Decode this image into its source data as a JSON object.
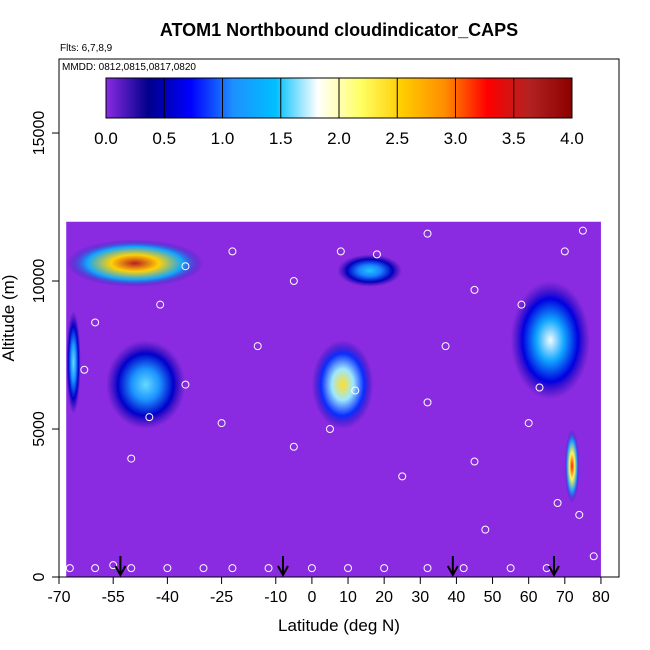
{
  "chart_data": {
    "type": "heatmap",
    "title": "ATOM1 Northbound cloudindicator_CAPS",
    "flights_note": "Flts: 6,7,8,9",
    "dates_note": "MMDD: 0812,0815,0817,0820",
    "xlabel": "Latitude (deg N)",
    "ylabel": "Altitude (m)",
    "xlim": [
      -70,
      85
    ],
    "ylim": [
      0,
      17500
    ],
    "x_ticks": [
      -70,
      -55,
      -40,
      -25,
      -10,
      0,
      10,
      20,
      30,
      40,
      50,
      60,
      70,
      80
    ],
    "y_ticks": [
      0,
      5000,
      10000,
      15000
    ],
    "colorbar": {
      "min": 0,
      "max": 4,
      "ticks": [
        "0.0",
        "0.5",
        "1.0",
        "1.5",
        "2.0",
        "2.5",
        "3.0",
        "3.5",
        "4.0"
      ],
      "colors": [
        "#8a2be2",
        "#00008b",
        "#0000ff",
        "#1e90ff",
        "#00bfff",
        "#ffffff",
        "#ffff66",
        "#ffcc00",
        "#ff8c00",
        "#ff0000",
        "#b22222",
        "#8b0000"
      ]
    },
    "background_value": 0.0,
    "domain_outline": [
      [
        -68,
        0
      ],
      [
        80,
        0
      ],
      [
        80,
        12000
      ],
      [
        -68,
        12000
      ]
    ],
    "cloud_features": [
      {
        "name": "southern-high-cloud",
        "x_range": [
          -68,
          -30
        ],
        "alt_range": [
          9800,
          11400
        ],
        "peak_value": 3.6
      },
      {
        "name": "southern-mid-cloud-a",
        "x_range": [
          -57,
          -35
        ],
        "alt_range": [
          5000,
          8000
        ],
        "peak_value": 1.6
      },
      {
        "name": "southern-edge-column",
        "x_range": [
          -68,
          -64
        ],
        "alt_range": [
          5500,
          9000
        ],
        "peak_value": 1.6
      },
      {
        "name": "tropical-mid-cloud",
        "x_range": [
          0,
          17
        ],
        "alt_range": [
          5000,
          8000
        ],
        "peak_value": 2.4
      },
      {
        "name": "tropical-high-cloud",
        "x_range": [
          7,
          25
        ],
        "alt_range": [
          9800,
          10900
        ],
        "peak_value": 1.5
      },
      {
        "name": "northern-high-band",
        "x_range": [
          55,
          77
        ],
        "alt_range": [
          6000,
          10000
        ],
        "peak_value": 1.8
      },
      {
        "name": "arctic-low-column",
        "x_range": [
          70,
          74
        ],
        "alt_range": [
          2500,
          5000
        ],
        "peak_value": 3.2
      }
    ],
    "sample_points": [
      {
        "lat": -67,
        "alt": 300
      },
      {
        "lat": -60,
        "alt": 300
      },
      {
        "lat": -55,
        "alt": 400
      },
      {
        "lat": -50,
        "alt": 300
      },
      {
        "lat": -40,
        "alt": 300
      },
      {
        "lat": -30,
        "alt": 300
      },
      {
        "lat": -22,
        "alt": 300
      },
      {
        "lat": -12,
        "alt": 300
      },
      {
        "lat": 0,
        "alt": 300
      },
      {
        "lat": 10,
        "alt": 300
      },
      {
        "lat": 20,
        "alt": 300
      },
      {
        "lat": 32,
        "alt": 300
      },
      {
        "lat": 42,
        "alt": 300
      },
      {
        "lat": 55,
        "alt": 300
      },
      {
        "lat": 65,
        "alt": 300
      },
      {
        "lat": 78,
        "alt": 700
      },
      {
        "lat": -50,
        "alt": 4000
      },
      {
        "lat": -45,
        "alt": 5400
      },
      {
        "lat": -35,
        "alt": 6500
      },
      {
        "lat": -25,
        "alt": 5200
      },
      {
        "lat": -15,
        "alt": 7800
      },
      {
        "lat": -5,
        "alt": 4400
      },
      {
        "lat": 5,
        "alt": 5000
      },
      {
        "lat": 12,
        "alt": 6300
      },
      {
        "lat": 25,
        "alt": 3400
      },
      {
        "lat": 32,
        "alt": 5900
      },
      {
        "lat": 45,
        "alt": 3900
      },
      {
        "lat": 48,
        "alt": 1600
      },
      {
        "lat": 60,
        "alt": 5200
      },
      {
        "lat": 68,
        "alt": 2500
      },
      {
        "lat": 74,
        "alt": 2100
      },
      {
        "lat": -60,
        "alt": 8600
      },
      {
        "lat": -42,
        "alt": 9200
      },
      {
        "lat": -35,
        "alt": 10500
      },
      {
        "lat": -22,
        "alt": 11000
      },
      {
        "lat": -5,
        "alt": 10000
      },
      {
        "lat": 8,
        "alt": 11000
      },
      {
        "lat": 18,
        "alt": 10900
      },
      {
        "lat": 32,
        "alt": 11600
      },
      {
        "lat": 45,
        "alt": 9700
      },
      {
        "lat": 58,
        "alt": 9200
      },
      {
        "lat": 70,
        "alt": 11000
      },
      {
        "lat": 75,
        "alt": 11700
      },
      {
        "lat": -63,
        "alt": 7000
      },
      {
        "lat": 37,
        "alt": 7800
      },
      {
        "lat": 63,
        "alt": 6400
      }
    ],
    "flight_markers_lat": [
      -53,
      -8,
      39,
      67
    ]
  }
}
